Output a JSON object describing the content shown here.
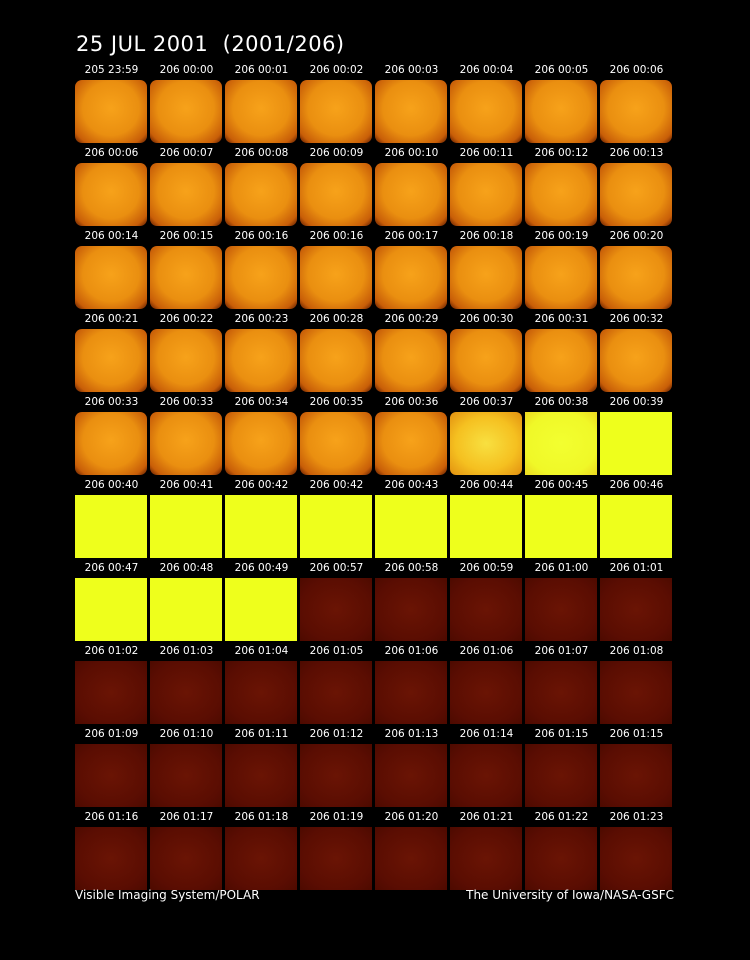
{
  "title": "25 JUL 2001  (2001/206)",
  "rows": [
    [
      "205 23:59",
      "206 00:00",
      "206 00:01",
      "206 00:02",
      "206 00:03",
      "206 00:04",
      "206 00:05",
      "206 00:06"
    ],
    [
      "206 00:06",
      "206 00:07",
      "206 00:08",
      "206 00:09",
      "206 00:10",
      "206 00:11",
      "206 00:12",
      "206 00:13"
    ],
    [
      "206 00:14",
      "206 00:15",
      "206 00:16",
      "206 00:16",
      "206 00:17",
      "206 00:18",
      "206 00:19",
      "206 00:20"
    ],
    [
      "206 00:21",
      "206 00:22",
      "206 00:23",
      "206 00:28",
      "206 00:29",
      "206 00:30",
      "206 00:31",
      "206 00:32"
    ],
    [
      "206 00:33",
      "206 00:33",
      "206 00:34",
      "206 00:35",
      "206 00:36",
      "206 00:37",
      "206 00:38",
      "206 00:39"
    ],
    [
      "206 00:40",
      "206 00:41",
      "206 00:42",
      "206 00:42",
      "206 00:43",
      "206 00:44",
      "206 00:45",
      "206 00:46"
    ],
    [
      "206 00:47",
      "206 00:48",
      "206 00:49",
      "206 00:57",
      "206 00:58",
      "206 00:59",
      "206 01:00",
      "206 01:01"
    ],
    [
      "206 01:02",
      "206 01:03",
      "206 01:04",
      "206 01:05",
      "206 01:06",
      "206 01:06",
      "206 01:07",
      "206 01:08"
    ],
    [
      "206 01:09",
      "206 01:10",
      "206 01:11",
      "206 01:12",
      "206 01:13",
      "206 01:14",
      "206 01:15",
      "206 01:15"
    ],
    [
      "206 01:16",
      "206 01:17",
      "206 01:18",
      "206 01:19",
      "206 01:20",
      "206 01:21",
      "206 01:22",
      "206 01:23"
    ]
  ],
  "footer": {
    "left": "Visible Imaging System/POLAR",
    "right": "The University of Iowa/NASA-GSFC"
  }
}
